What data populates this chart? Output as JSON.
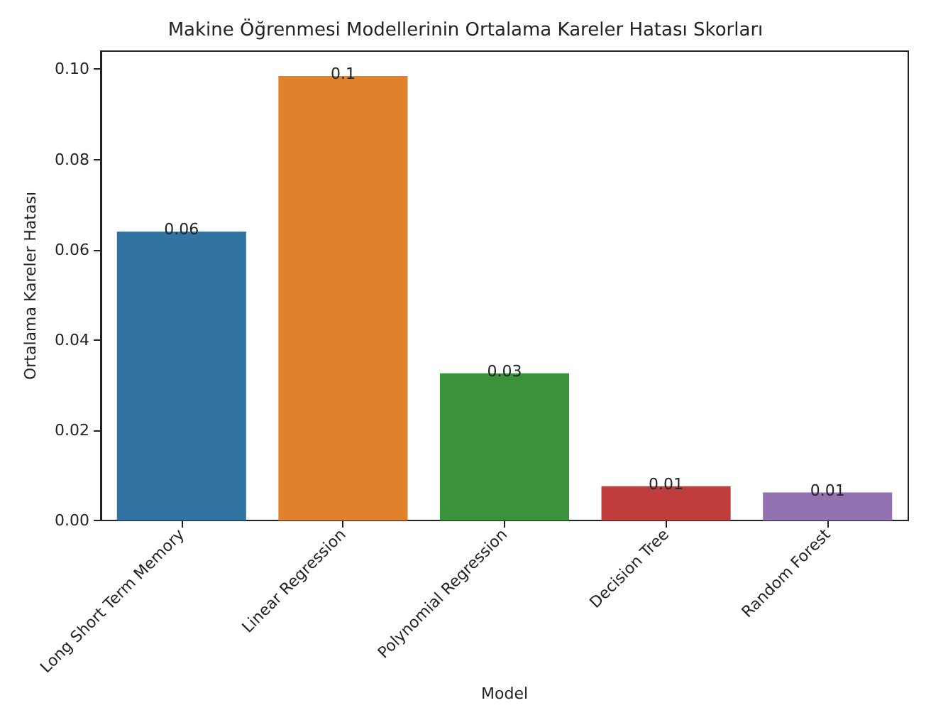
{
  "chart_data": {
    "type": "bar",
    "title": "Makine Öğrenmesi Modellerinin Ortalama Kareler Hatası Skorları",
    "xlabel": "Model",
    "ylabel": "Ortalama Kareler Hatası",
    "categories": [
      "Long Short Term Memory",
      "Linear Regression",
      "Polynomial Regression",
      "Decision Tree",
      "Random Forest"
    ],
    "values": [
      0.064,
      0.0985,
      0.0326,
      0.0076,
      0.0062
    ],
    "colors": [
      "#3274a1",
      "#e1812c",
      "#3a923a",
      "#c03d3e",
      "#9372b2"
    ],
    "value_labels": [
      "0.06",
      "0.1",
      "0.03",
      "0.01",
      "0.01"
    ],
    "ylim": [
      0,
      0.104
    ],
    "yticks": [
      {
        "value": 0,
        "label": "0.00"
      },
      {
        "value": 0.02,
        "label": "0.02"
      },
      {
        "value": 0.04,
        "label": "0.04"
      },
      {
        "value": 0.06,
        "label": "0.06"
      },
      {
        "value": 0.08,
        "label": "0.08"
      },
      {
        "value": 0.1,
        "label": "0.10"
      }
    ],
    "grid": false
  }
}
